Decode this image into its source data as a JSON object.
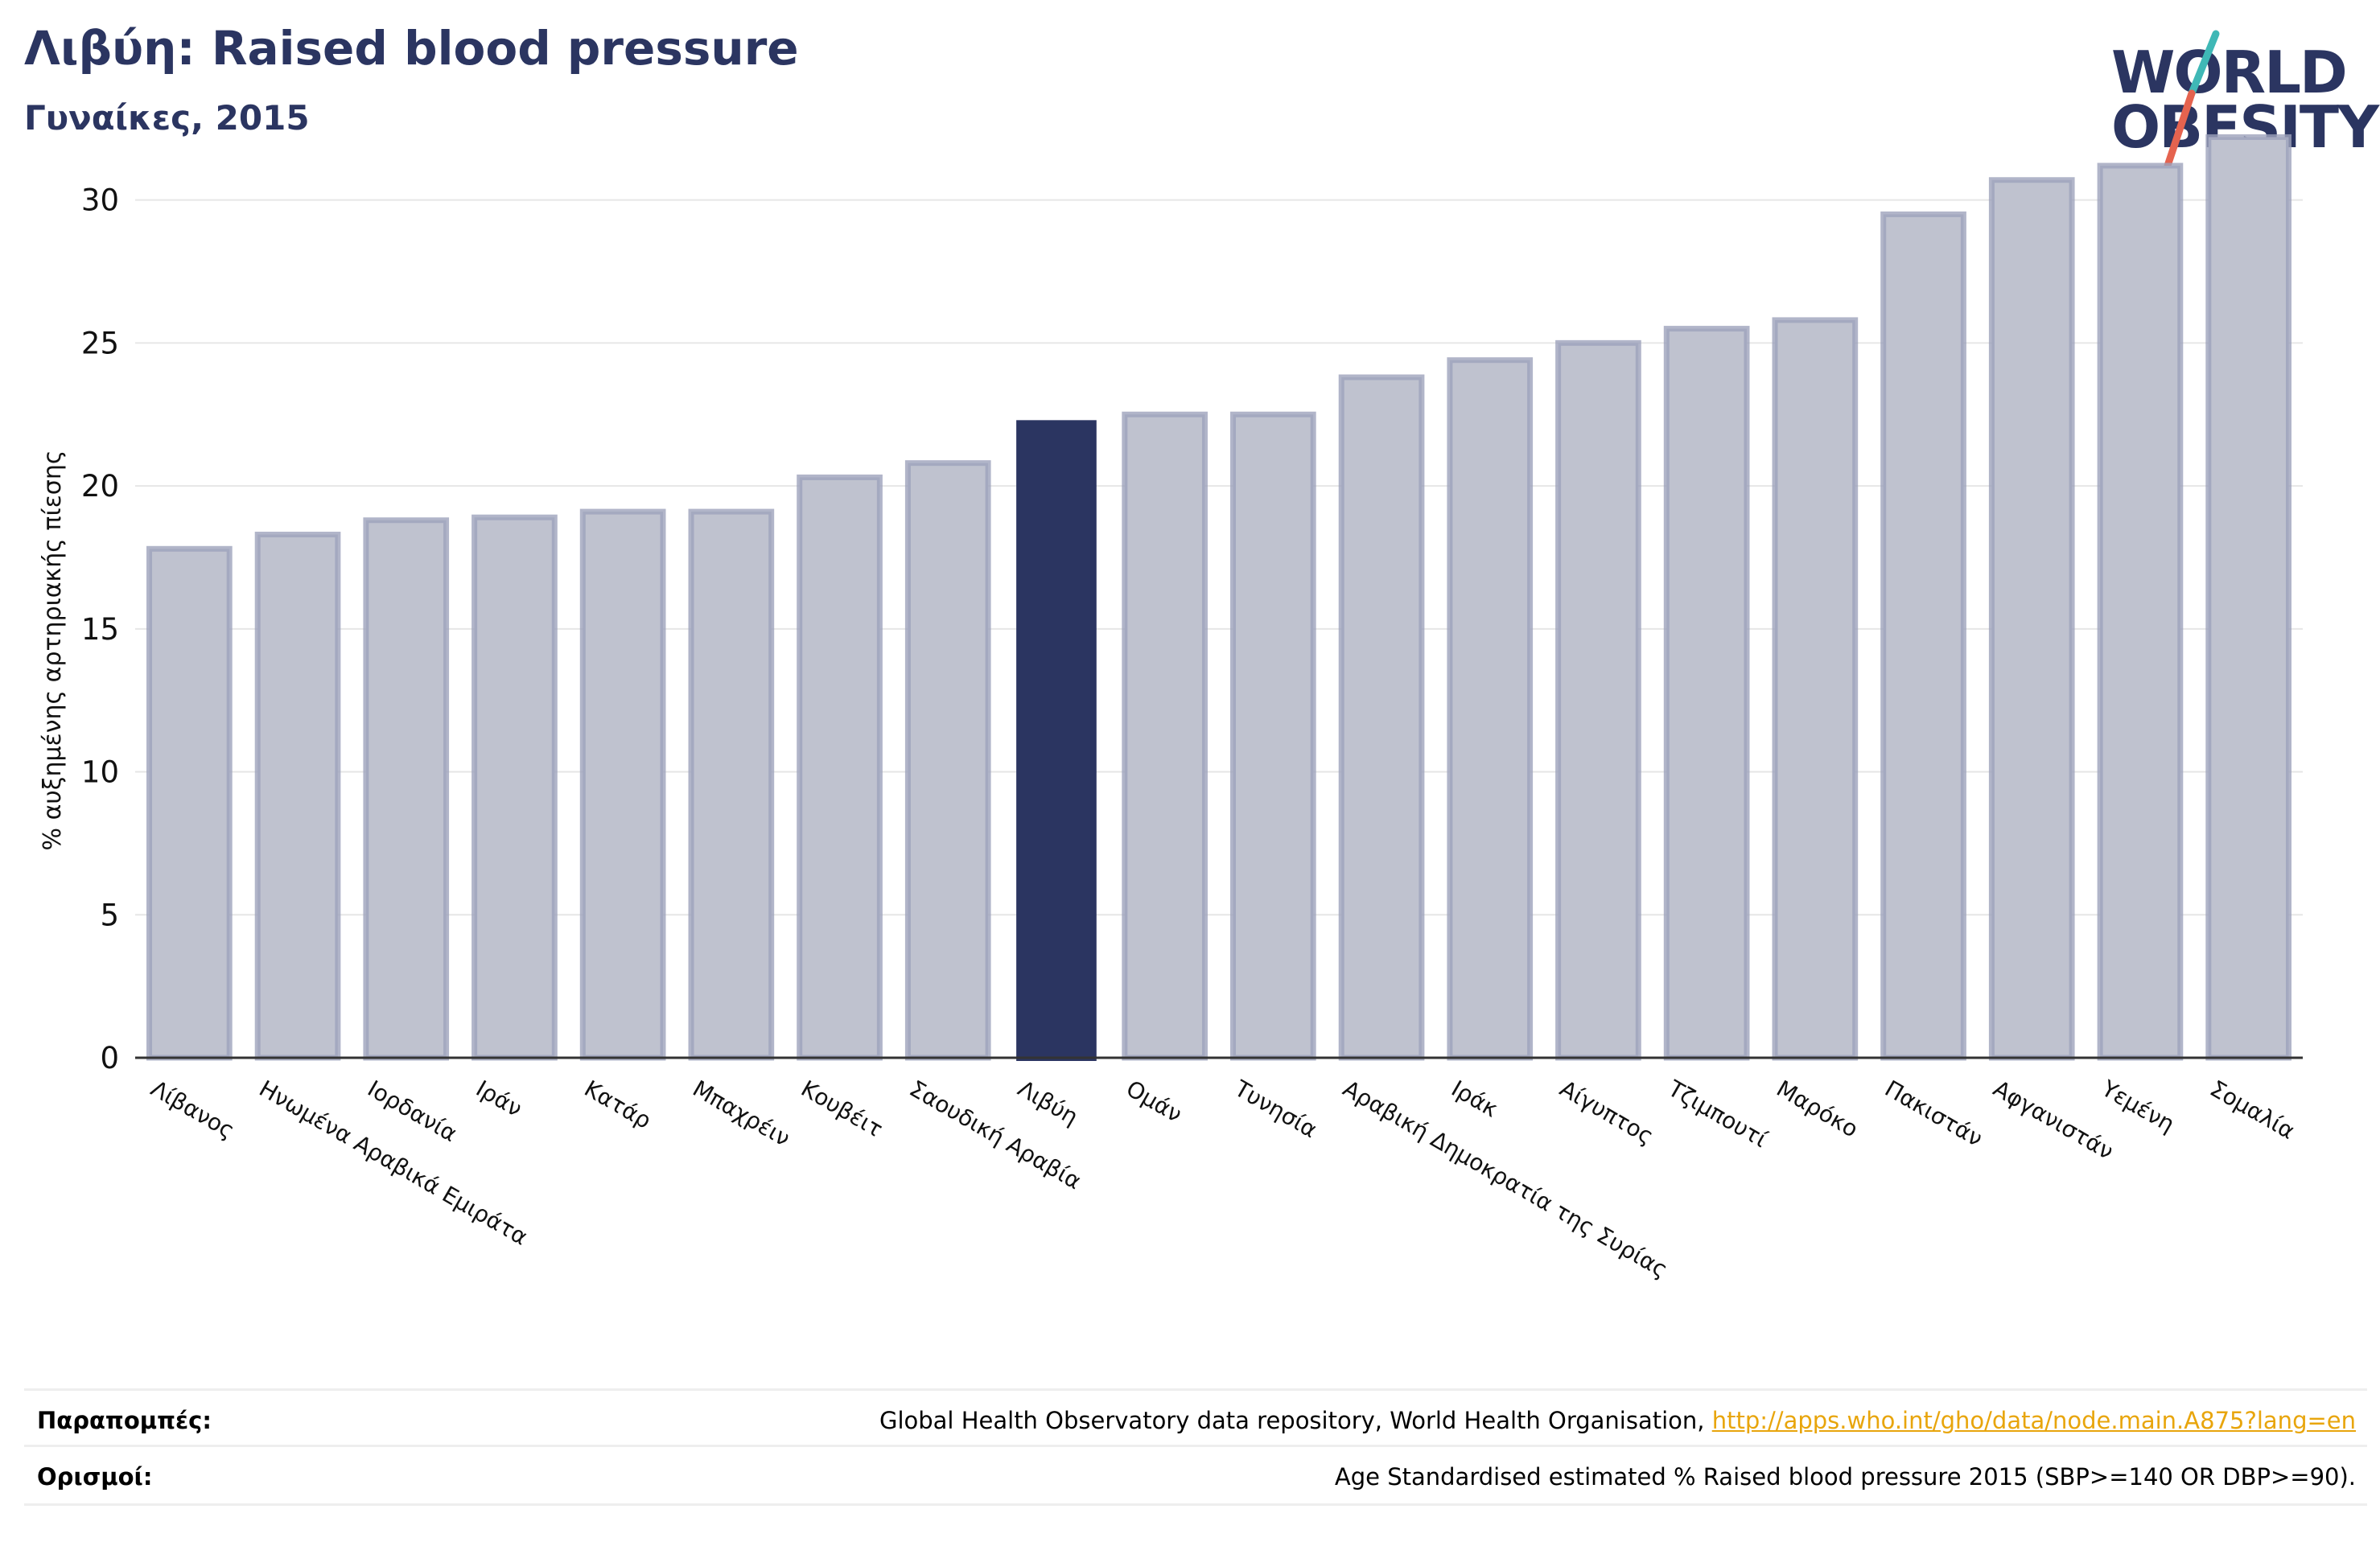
{
  "header": {
    "title": "Λιβύη: Raised blood pressure",
    "subtitle": "Γυναίκες, 2015"
  },
  "logo": {
    "line1": "WORLD",
    "line2": "OBESITY"
  },
  "colors": {
    "bar": "#bfc2cf",
    "bar_border": "#9ea2bb",
    "highlight": "#2b3561",
    "grid": "#e6e6e6",
    "axis": "#333333",
    "link": "#e8a50c",
    "logo_teal": "#3fb8b6",
    "logo_red": "#e5634f"
  },
  "chart_data": {
    "type": "bar",
    "ylabel": "% αυξημένης αρτηριακής πίεσης",
    "ylim": [
      0,
      33
    ],
    "yticks": [
      0,
      5,
      10,
      15,
      20,
      25,
      30
    ],
    "grid": true,
    "highlight": "Λιβύη",
    "categories": [
      "Λίβανος",
      "Ηνωμένα Αραβικά Εμιράτα",
      "Ιορδανία",
      "Ιράν",
      "Κατάρ",
      "Μπαχρέιν",
      "Κουβέιτ",
      "Σαουδική Αραβία",
      "Λιβύη",
      "Ομάν",
      "Τυνησία",
      "Αραβική Δημοκρατία της Συρίας",
      "Ιράκ",
      "Αίγυπτος",
      "Τζιμπουτί",
      "Μαρόκο",
      "Πακιστάν",
      "Αφγανιστάν",
      "Υεμένη",
      "Σομαλία"
    ],
    "values": [
      17.8,
      18.3,
      18.8,
      18.9,
      19.1,
      19.1,
      20.3,
      20.8,
      22.3,
      22.5,
      22.5,
      23.8,
      24.4,
      25.0,
      25.5,
      25.8,
      29.5,
      30.7,
      31.2,
      32.2
    ]
  },
  "footer": {
    "references_label": "Παραπομπές:",
    "references_text": "Global Health Observatory data repository, World Health Organisation, ",
    "references_link": "http://apps.who.int/gho/data/node.main.A875?lang=en",
    "definitions_label": "Ορισμοί:",
    "definitions_text": "Age Standardised estimated % Raised blood pressure 2015 (SBP>=140 OR DBP>=90)."
  }
}
